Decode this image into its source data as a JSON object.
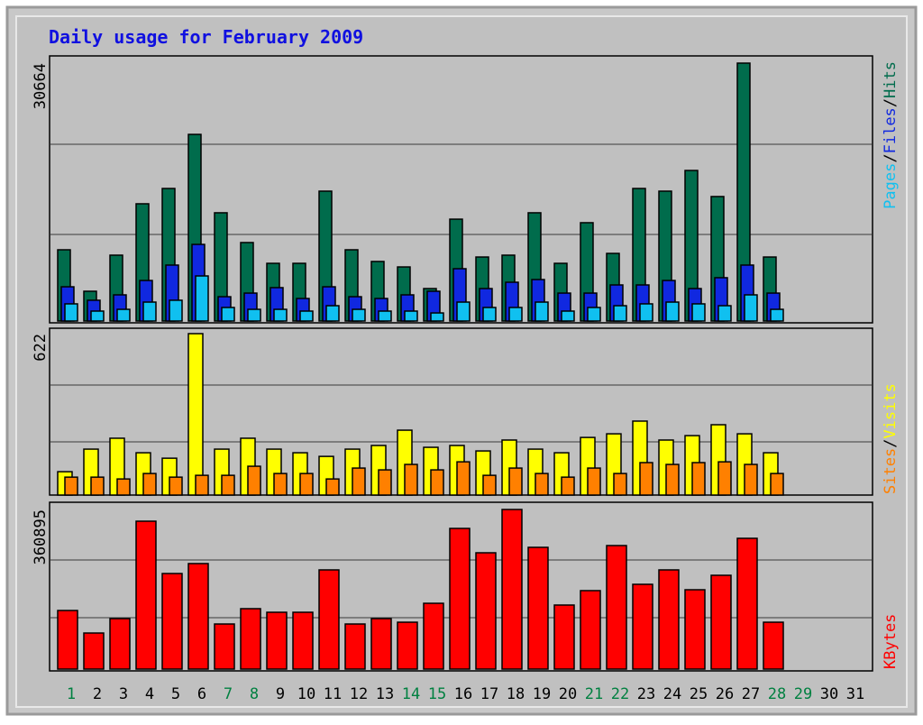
{
  "chart_data": [
    {
      "type": "bar",
      "title": "Daily usage for February 2009",
      "ylim": [
        0,
        30664
      ],
      "yticks": [
        30664
      ],
      "legend_separator": "/",
      "series": [
        {
          "name": "Hits",
          "color": "#006c4c",
          "values": [
            8470,
            3540,
            7830,
            13940,
            15760,
            22190,
            12870,
            9330,
            6860,
            6860,
            15440,
            8470,
            7080,
            6430,
            3860,
            12110,
            7610,
            7830,
            12870,
            6860,
            11690,
            8040,
            15760,
            15440,
            17900,
            14800,
            30664,
            7610,
            null,
            null,
            null
          ]
        },
        {
          "name": "Files",
          "color": "#1028e0",
          "values": [
            4070,
            2470,
            3110,
            4820,
            6650,
            9110,
            2890,
            3320,
            3970,
            2680,
            4070,
            2890,
            2680,
            3110,
            3540,
            6220,
            3860,
            4610,
            4930,
            3320,
            3320,
            4290,
            4290,
            4820,
            3860,
            5150,
            6650,
            3320,
            null,
            null,
            null
          ]
        },
        {
          "name": "Pages",
          "color": "#10c0f0",
          "values": [
            2040,
            1180,
            1390,
            2250,
            2470,
            5360,
            1610,
            1390,
            1390,
            1180,
            1820,
            1390,
            1180,
            1180,
            960,
            2250,
            1610,
            1610,
            2250,
            1180,
            1610,
            1820,
            2040,
            2250,
            2040,
            1820,
            3110,
            1390,
            null,
            null,
            null
          ]
        }
      ]
    },
    {
      "type": "bar",
      "ylim": [
        0,
        622
      ],
      "yticks": [
        622
      ],
      "legend_separator": "/",
      "series": [
        {
          "name": "Visits",
          "color": "#ffff00",
          "values": [
            90,
            177,
            219,
            163,
            142,
            622,
            177,
            219,
            177,
            163,
            149,
            177,
            191,
            250,
            184,
            191,
            170,
            212,
            177,
            163,
            222,
            236,
            285,
            212,
            229,
            271,
            236,
            163,
            null,
            null,
            null
          ]
        },
        {
          "name": "Sites",
          "color": "#ff8000",
          "values": [
            69,
            69,
            62,
            83,
            69,
            76,
            76,
            111,
            83,
            83,
            62,
            104,
            97,
            118,
            97,
            128,
            76,
            104,
            83,
            69,
            104,
            83,
            125,
            118,
            125,
            128,
            118,
            83,
            null,
            null,
            null
          ]
        }
      ]
    },
    {
      "type": "bar",
      "ylim": [
        0,
        360895
      ],
      "yticks": [
        360895
      ],
      "categories": [
        "1",
        "2",
        "3",
        "4",
        "5",
        "6",
        "7",
        "8",
        "9",
        "10",
        "11",
        "12",
        "13",
        "14",
        "15",
        "16",
        "17",
        "18",
        "19",
        "20",
        "21",
        "22",
        "23",
        "24",
        "25",
        "26",
        "27",
        "28",
        "29",
        "30",
        "31"
      ],
      "category_colors": [
        "#008040",
        "#000000",
        "#000000",
        "#000000",
        "#000000",
        "#000000",
        "#008040",
        "#008040",
        "#000000",
        "#000000",
        "#000000",
        "#000000",
        "#000000",
        "#008040",
        "#008040",
        "#000000",
        "#000000",
        "#000000",
        "#000000",
        "#000000",
        "#008040",
        "#008040",
        "#000000",
        "#000000",
        "#000000",
        "#000000",
        "#000000",
        "#008040",
        "#008040",
        "#000000",
        "#000000"
      ],
      "series": [
        {
          "name": "KBytes",
          "color": "#ff0000",
          "values": [
            132500,
            81560,
            114190,
            334400,
            216100,
            238600,
            101950,
            136600,
            128500,
            128500,
            224300,
            101950,
            114190,
            106000,
            148800,
            318100,
            263000,
            360895,
            275300,
            144800,
            177400,
            279300,
            191700,
            224300,
            179400,
            212100,
            295700,
            106000,
            null,
            null,
            null
          ]
        }
      ]
    }
  ]
}
